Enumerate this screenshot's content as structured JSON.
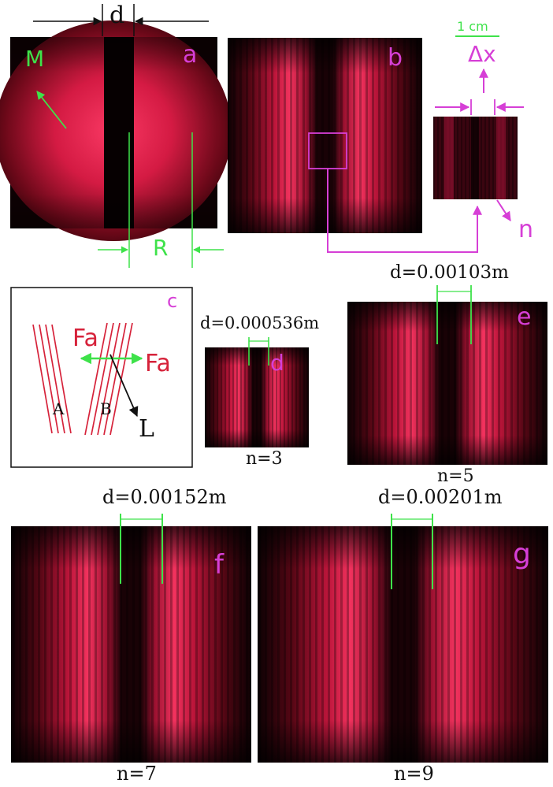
{
  "figure": {
    "panel_a": {
      "letter": "a",
      "d_label": "d",
      "m_label": "M",
      "r_label": "R"
    },
    "panel_b": {
      "letter": "b"
    },
    "inset": {
      "scale_label": "1 cm",
      "delta_x_label": "Δx",
      "n_label": "n"
    },
    "panel_c": {
      "letter": "c",
      "fa_left": "Fa",
      "fa_right": "Fa",
      "bundle_a": "A",
      "bundle_b": "B",
      "l_label": "L"
    },
    "panel_d": {
      "letter": "d",
      "d_value": "d=0.000536m",
      "n_value": "n=3"
    },
    "panel_e": {
      "letter": "e",
      "d_value": "d=0.00103m",
      "n_value": "n=5"
    },
    "panel_f": {
      "letter": "f",
      "d_value": "d=0.00152m",
      "n_value": "n=7"
    },
    "panel_g": {
      "letter": "g",
      "d_value": "d=0.00201m",
      "n_value": "n=9"
    }
  },
  "colors": {
    "red_bright": "#ff2a55",
    "red_dark": "#2a0206",
    "magenta": "#d63fd6",
    "green": "#3ee24a",
    "black": "#111111"
  }
}
